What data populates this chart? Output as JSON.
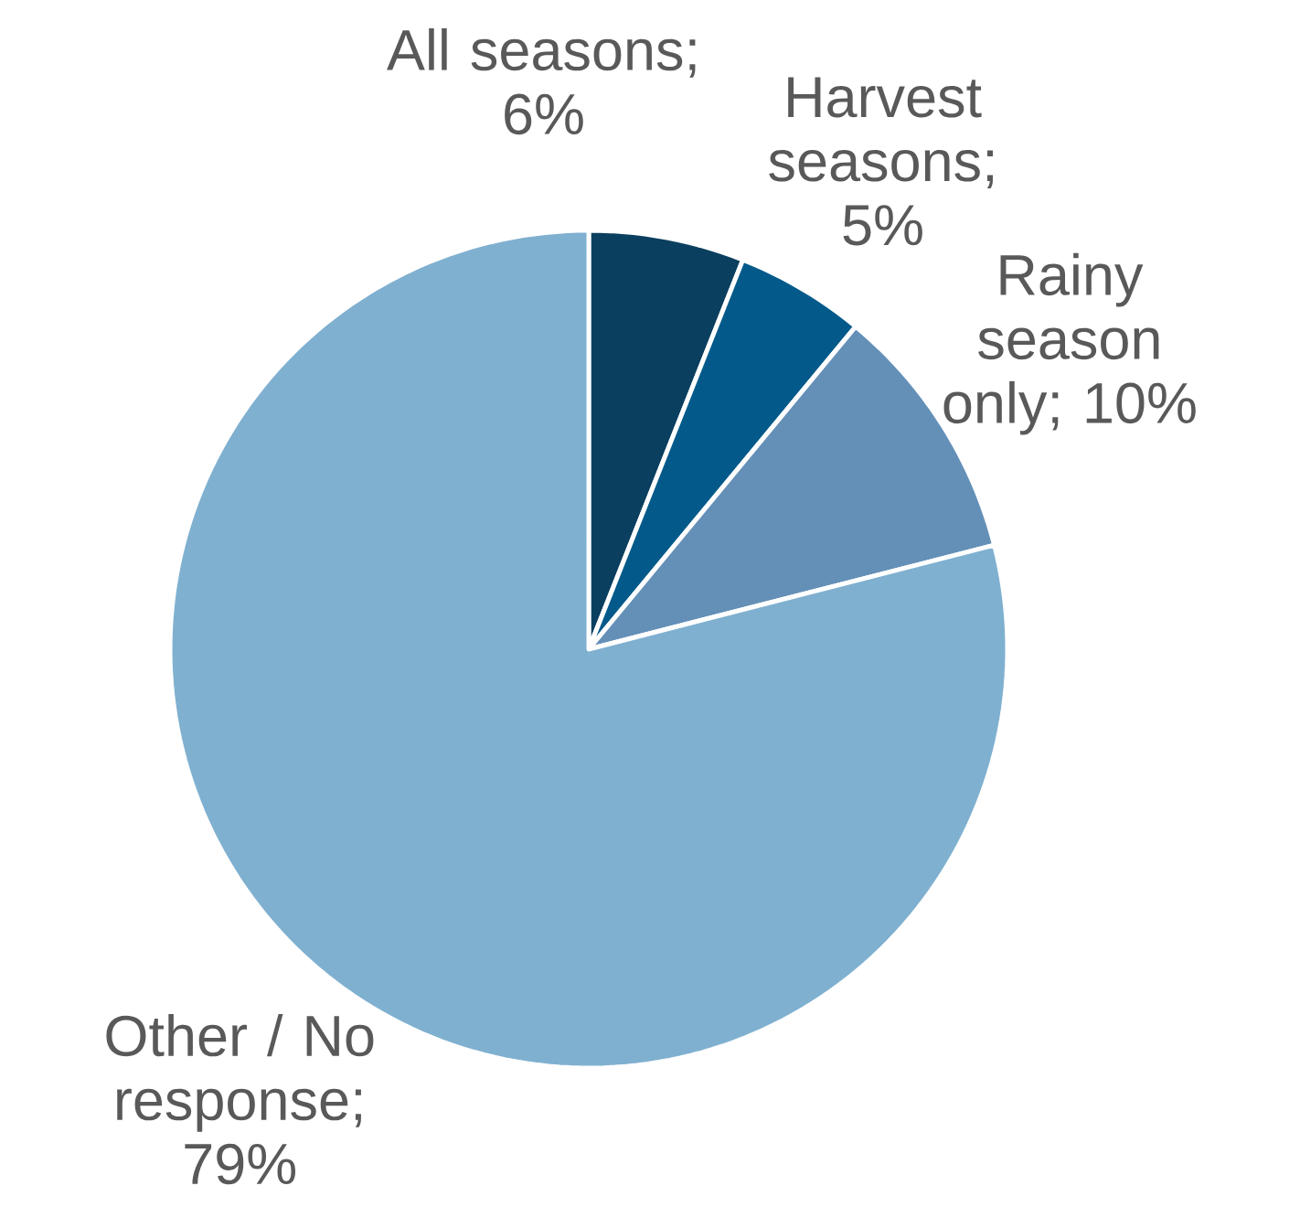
{
  "chart_data": {
    "type": "pie",
    "categories": [
      "All seasons",
      "Harvest seasons",
      "Rainy season only",
      "Other / No response"
    ],
    "values": [
      6,
      5,
      10,
      79
    ],
    "value_labels": [
      "; 6%",
      "; 5%",
      "; 10%",
      "; 79%"
    ],
    "colors": [
      "#0b3f5f",
      "#035a8a",
      "#6490b8",
      "#7fb0d0"
    ]
  }
}
